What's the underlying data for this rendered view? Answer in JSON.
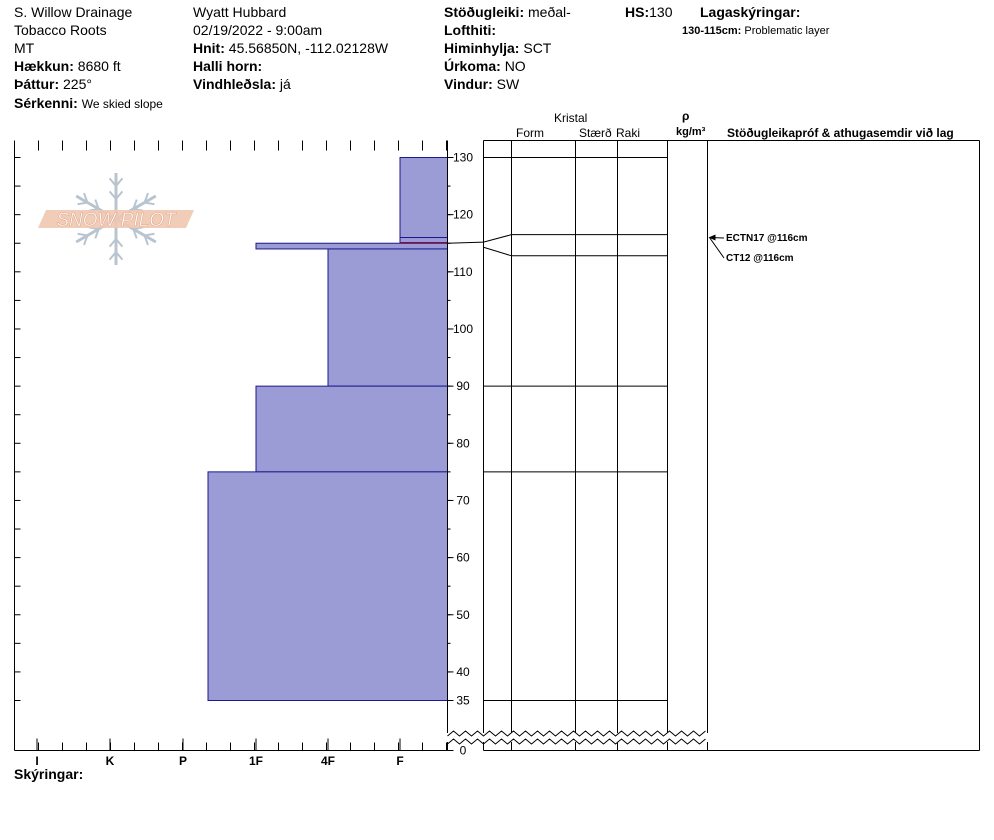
{
  "header": {
    "location": "S. Willow Drainage",
    "range": "Tobacco Roots",
    "state": "MT",
    "elevation_label": "Hækkun:",
    "elevation": "8680 ft",
    "aspect_label": "Þáttur:",
    "aspect": "225°",
    "features_label": "Sérkenni:",
    "features": "We skied slope",
    "observer": "Wyatt Hubbard",
    "datetime": "02/19/2022 - 9:00am",
    "coords_label": "Hnit:",
    "coords": "45.56850N, -112.02128W",
    "slope_label": "Halli horn:",
    "slope": "",
    "wind_loading_label": "Vindhleðsla:",
    "wind_loading": "já",
    "stability_label": "Stöðugleiki:",
    "stability": "meðal-",
    "air_temp_label": "Lofthiti:",
    "air_temp": "",
    "sky_label": "Himinhylja:",
    "sky": "SCT",
    "precip_label": "Úrkoma:",
    "precip": "NO",
    "wind_label": "Vindur:",
    "wind": "SW",
    "hs_label": "HS:",
    "hs": "130",
    "layer_notes_label": "Lagaskýringar:",
    "layer_note_range": "130-115cm:",
    "layer_note_text": "Problematic layer"
  },
  "columns": {
    "crystal": "Kristal",
    "form": "Form",
    "size": "Stærð",
    "moisture": "Raki",
    "rho": "ρ",
    "density_unit": "kg/m³",
    "stability_tests": "Stöðugleikapróf & athugasemdir við lag"
  },
  "logo": {
    "text": "SNOW PILOT"
  },
  "footer": {
    "notes_label": "Skýringar:"
  },
  "chart_data": {
    "type": "snow-profile",
    "x_hardness_ticks": [
      "I",
      "K",
      "P",
      "1F",
      "4F",
      "F"
    ],
    "y_ticks": [
      0,
      35,
      40,
      50,
      60,
      70,
      80,
      90,
      100,
      110,
      120,
      130
    ],
    "y_unit": "cm",
    "ylim": [
      0,
      130
    ],
    "layer_boundaries": [
      130,
      116.5,
      115.5,
      113.5,
      90,
      75,
      35
    ],
    "layers": [
      {
        "top": 130,
        "bottom": 116,
        "hardness": "F-"
      },
      {
        "top": 116,
        "bottom": 115,
        "hardness": "F",
        "highlight": true,
        "highlight_color": "#cc0000"
      },
      {
        "top": 115,
        "bottom": 114,
        "hardness": "1F"
      },
      {
        "top": 114,
        "bottom": 90,
        "hardness": "4F"
      },
      {
        "top": 90,
        "bottom": 75,
        "hardness": "1F"
      },
      {
        "top": 75,
        "bottom": 35,
        "hardness": "1F-"
      }
    ],
    "fill_color": "#9b9bd6",
    "stroke_color": "#1a1a8c",
    "stability_tests": [
      {
        "text": "ECTN17 @116cm",
        "depth": 116
      },
      {
        "text": "CT12 @116cm",
        "depth": 116
      }
    ]
  }
}
